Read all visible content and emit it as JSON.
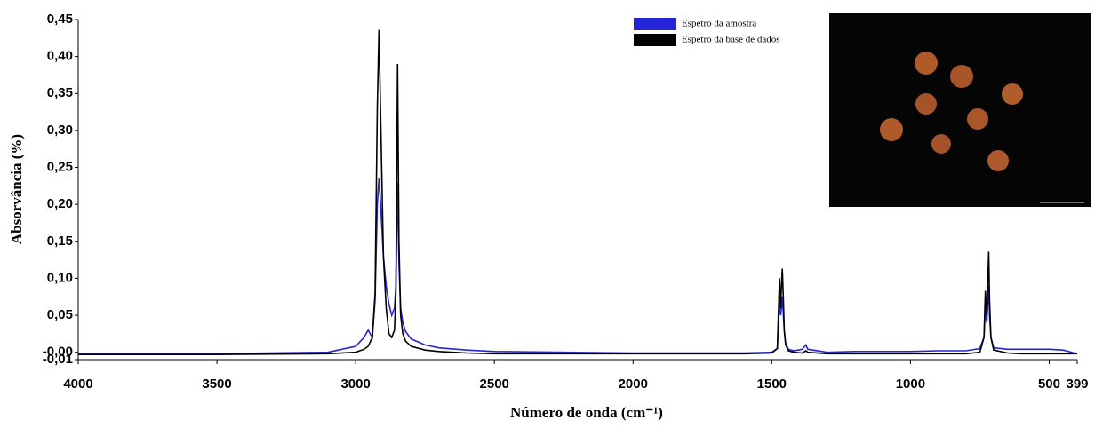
{
  "chart_data": {
    "type": "line",
    "xlabel": "Número de onda (cm⁻¹)",
    "ylabel": "Absorvância (%)",
    "x": [
      4000,
      3500,
      3100,
      3000,
      2970,
      2955,
      2940,
      2930,
      2922,
      2916,
      2910,
      2900,
      2890,
      2880,
      2870,
      2860,
      2855,
      2849,
      2844,
      2838,
      2830,
      2820,
      2800,
      2750,
      2700,
      2600,
      2500,
      2000,
      1800,
      1600,
      1500,
      1480,
      1472,
      1468,
      1465,
      1462,
      1458,
      1455,
      1450,
      1440,
      1420,
      1390,
      1377,
      1370,
      1300,
      1200,
      1000,
      900,
      800,
      750,
      735,
      730,
      725,
      718,
      715,
      710,
      700,
      650,
      600,
      500,
      450,
      399
    ],
    "series": [
      {
        "name": "Espetro da amostra",
        "color": "#2424d8",
        "values": [
          -0.002,
          -0.002,
          0.0,
          0.008,
          0.02,
          0.03,
          0.02,
          0.07,
          0.2,
          0.235,
          0.2,
          0.13,
          0.09,
          0.065,
          0.05,
          0.06,
          0.09,
          0.23,
          0.12,
          0.06,
          0.04,
          0.028,
          0.018,
          0.01,
          0.006,
          0.003,
          0.001,
          -0.001,
          -0.001,
          -0.001,
          0.0,
          0.005,
          0.07,
          0.05,
          0.06,
          0.075,
          0.05,
          0.03,
          0.012,
          0.004,
          0.002,
          0.004,
          0.01,
          0.004,
          0.0,
          0.001,
          0.001,
          0.002,
          0.002,
          0.005,
          0.02,
          0.06,
          0.04,
          0.09,
          0.05,
          0.02,
          0.006,
          0.004,
          0.004,
          0.004,
          0.003,
          -0.002
        ]
      },
      {
        "name": "Espetro da base de dados",
        "color": "#000000",
        "values": [
          -0.003,
          -0.003,
          -0.002,
          0.0,
          0.004,
          0.008,
          0.02,
          0.08,
          0.33,
          0.436,
          0.32,
          0.13,
          0.06,
          0.025,
          0.02,
          0.03,
          0.08,
          0.39,
          0.15,
          0.05,
          0.025,
          0.015,
          0.008,
          0.003,
          0.001,
          -0.001,
          -0.002,
          -0.002,
          -0.002,
          -0.002,
          -0.001,
          0.005,
          0.1,
          0.06,
          0.09,
          0.113,
          0.07,
          0.03,
          0.01,
          0.002,
          0.0,
          -0.001,
          0.002,
          0.0,
          -0.002,
          -0.002,
          -0.002,
          -0.002,
          -0.002,
          0.0,
          0.02,
          0.083,
          0.05,
          0.136,
          0.07,
          0.02,
          0.003,
          -0.001,
          -0.002,
          -0.002,
          -0.002,
          -0.002
        ]
      }
    ],
    "xlim": [
      4000,
      399
    ],
    "xticks": [
      4000,
      3500,
      3000,
      2500,
      2000,
      1500,
      1000,
      500,
      399
    ],
    "ylim": [
      -0.01,
      0.45
    ],
    "yticks": [
      {
        "value": -0.01,
        "label": "-0,01"
      },
      {
        "value": 0,
        "label": "-0,00"
      },
      {
        "value": 0.05,
        "label": "0,05"
      },
      {
        "value": 0.1,
        "label": "0,10"
      },
      {
        "value": 0.15,
        "label": "0,15"
      },
      {
        "value": 0.2,
        "label": "0,20"
      },
      {
        "value": 0.25,
        "label": "0,25"
      },
      {
        "value": 0.3,
        "label": "0,30"
      },
      {
        "value": 0.35,
        "label": "0,35"
      },
      {
        "value": 0.4,
        "label": "0,40"
      },
      {
        "value": 0.45,
        "label": "0,45"
      }
    ],
    "grid": false,
    "legend": "top-right"
  }
}
